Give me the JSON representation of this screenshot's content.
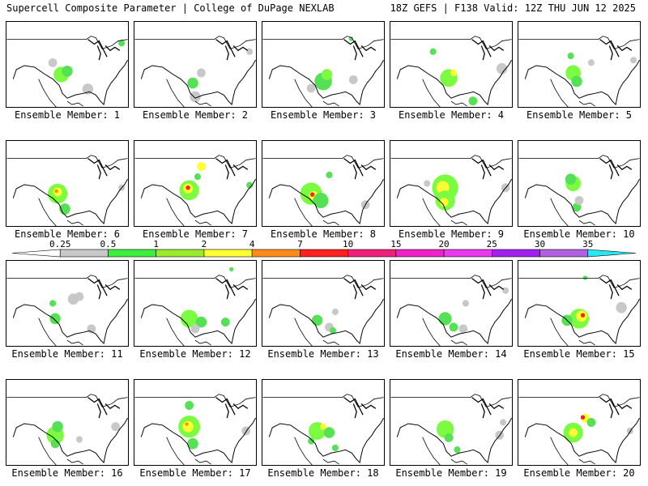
{
  "title_left": "Supercell Composite Parameter | College of DuPage NEXLAB",
  "title_right": "18Z GEFS | F138 Valid: 12Z THU JUN 12 2025",
  "members": [
    {
      "label": "Ensemble Member: 1",
      "blobs": [
        [
          0.45,
          0.62,
          "#7cfc40",
          0.07
        ],
        [
          0.5,
          0.58,
          "#55e055",
          0.05
        ],
        [
          0.67,
          0.79,
          "#c8c8c8",
          0.05
        ],
        [
          0.38,
          0.48,
          "#c8c8c8",
          0.04
        ],
        [
          0.95,
          0.25,
          "#55e055",
          0.03
        ]
      ]
    },
    {
      "label": "Ensemble Member: 2",
      "blobs": [
        [
          0.48,
          0.72,
          "#55e055",
          0.05
        ],
        [
          0.5,
          0.88,
          "#c8c8c8",
          0.05
        ],
        [
          0.55,
          0.6,
          "#c8c8c8",
          0.04
        ],
        [
          0.95,
          0.35,
          "#c8c8c8",
          0.03
        ]
      ]
    },
    {
      "label": "Ensemble Member: 3",
      "blobs": [
        [
          0.5,
          0.7,
          "#55e055",
          0.08
        ],
        [
          0.53,
          0.62,
          "#7cfc40",
          0.05
        ],
        [
          0.4,
          0.78,
          "#c8c8c8",
          0.04
        ],
        [
          0.75,
          0.68,
          "#c8c8c8",
          0.04
        ],
        [
          0.73,
          0.2,
          "#55e055",
          0.02
        ]
      ]
    },
    {
      "label": "Ensemble Member: 4",
      "blobs": [
        [
          0.48,
          0.66,
          "#7cfc40",
          0.08
        ],
        [
          0.52,
          0.6,
          "#ffff33",
          0.03
        ],
        [
          0.35,
          0.35,
          "#55e055",
          0.03
        ],
        [
          0.68,
          0.93,
          "#55e055",
          0.04
        ],
        [
          0.92,
          0.55,
          "#c8c8c8",
          0.05
        ]
      ]
    },
    {
      "label": "Ensemble Member: 5",
      "blobs": [
        [
          0.45,
          0.6,
          "#7cfc40",
          0.07
        ],
        [
          0.48,
          0.7,
          "#55e055",
          0.05
        ],
        [
          0.43,
          0.4,
          "#55e055",
          0.03
        ],
        [
          0.6,
          0.48,
          "#c8c8c8",
          0.03
        ],
        [
          0.95,
          0.45,
          "#c8c8c8",
          0.03
        ]
      ]
    },
    {
      "label": "Ensemble Member: 6",
      "blobs": [
        [
          0.42,
          0.62,
          "#7cfc40",
          0.09
        ],
        [
          0.42,
          0.6,
          "#ffff33",
          0.04
        ],
        [
          0.41,
          0.59,
          "#ff8c00",
          0.015
        ],
        [
          0.48,
          0.8,
          "#55e055",
          0.05
        ],
        [
          0.95,
          0.55,
          "#c8c8c8",
          0.03
        ]
      ]
    },
    {
      "label": "Ensemble Member: 7",
      "blobs": [
        [
          0.45,
          0.58,
          "#7cfc40",
          0.09
        ],
        [
          0.44,
          0.56,
          "#ffff33",
          0.045
        ],
        [
          0.44,
          0.55,
          "#ff2020",
          0.02
        ],
        [
          0.55,
          0.3,
          "#ffff33",
          0.04
        ],
        [
          0.52,
          0.42,
          "#55e055",
          0.03
        ],
        [
          0.95,
          0.52,
          "#55e055",
          0.03
        ]
      ]
    },
    {
      "label": "Ensemble Member: 8",
      "blobs": [
        [
          0.4,
          0.62,
          "#7cfc40",
          0.1
        ],
        [
          0.42,
          0.64,
          "#ffff33",
          0.04
        ],
        [
          0.41,
          0.63,
          "#ff2020",
          0.02
        ],
        [
          0.48,
          0.7,
          "#55e055",
          0.07
        ],
        [
          0.55,
          0.4,
          "#55e055",
          0.03
        ],
        [
          0.85,
          0.75,
          "#c8c8c8",
          0.04
        ]
      ]
    },
    {
      "label": "Ensemble Member: 9",
      "blobs": [
        [
          0.45,
          0.55,
          "#7cfc40",
          0.12
        ],
        [
          0.43,
          0.55,
          "#ffff33",
          0.06
        ],
        [
          0.45,
          0.7,
          "#7cfc40",
          0.09
        ],
        [
          0.44,
          0.72,
          "#ffff33",
          0.04
        ],
        [
          0.3,
          0.5,
          "#c8c8c8",
          0.03
        ],
        [
          0.95,
          0.55,
          "#c8c8c8",
          0.04
        ]
      ]
    },
    {
      "label": "Ensemble Member: 10",
      "blobs": [
        [
          0.45,
          0.5,
          "#7cfc40",
          0.07
        ],
        [
          0.43,
          0.45,
          "#55e055",
          0.05
        ],
        [
          0.48,
          0.78,
          "#55e055",
          0.04
        ],
        [
          0.5,
          0.7,
          "#c8c8c8",
          0.04
        ]
      ]
    },
    {
      "label": "Ensemble Member: 11",
      "blobs": [
        [
          0.4,
          0.68,
          "#55e055",
          0.05
        ],
        [
          0.38,
          0.5,
          "#55e055",
          0.03
        ],
        [
          0.55,
          0.45,
          "#c8c8c8",
          0.05
        ],
        [
          0.6,
          0.42,
          "#c8c8c8",
          0.04
        ],
        [
          0.7,
          0.8,
          "#c8c8c8",
          0.04
        ]
      ]
    },
    {
      "label": "Ensemble Member: 12",
      "blobs": [
        [
          0.45,
          0.68,
          "#7cfc40",
          0.08
        ],
        [
          0.55,
          0.72,
          "#55e055",
          0.05
        ],
        [
          0.75,
          0.72,
          "#55e055",
          0.04
        ],
        [
          0.5,
          0.8,
          "#c8c8c8",
          0.04
        ],
        [
          0.8,
          0.1,
          "#55e055",
          0.02
        ]
      ]
    },
    {
      "label": "Ensemble Member: 13",
      "blobs": [
        [
          0.45,
          0.7,
          "#55e055",
          0.05
        ],
        [
          0.55,
          0.78,
          "#c8c8c8",
          0.04
        ],
        [
          0.58,
          0.82,
          "#55e055",
          0.03
        ],
        [
          0.6,
          0.6,
          "#c8c8c8",
          0.03
        ]
      ]
    },
    {
      "label": "Ensemble Member: 14",
      "blobs": [
        [
          0.45,
          0.68,
          "#55e055",
          0.06
        ],
        [
          0.52,
          0.78,
          "#55e055",
          0.04
        ],
        [
          0.6,
          0.8,
          "#c8c8c8",
          0.04
        ],
        [
          0.95,
          0.35,
          "#c8c8c8",
          0.03
        ],
        [
          0.62,
          0.5,
          "#c8c8c8",
          0.03
        ]
      ]
    },
    {
      "label": "Ensemble Member: 15",
      "blobs": [
        [
          0.5,
          0.68,
          "#7cfc40",
          0.09
        ],
        [
          0.52,
          0.65,
          "#ffff33",
          0.05
        ],
        [
          0.53,
          0.64,
          "#ff2020",
          0.02
        ],
        [
          0.4,
          0.7,
          "#55e055",
          0.05
        ],
        [
          0.85,
          0.55,
          "#c8c8c8",
          0.05
        ],
        [
          0.55,
          0.2,
          "#55e055",
          0.02
        ]
      ]
    },
    {
      "label": "Ensemble Member: 16",
      "blobs": [
        [
          0.4,
          0.65,
          "#7cfc40",
          0.08
        ],
        [
          0.42,
          0.55,
          "#55e055",
          0.05
        ],
        [
          0.4,
          0.75,
          "#55e055",
          0.04
        ],
        [
          0.9,
          0.55,
          "#c8c8c8",
          0.04
        ],
        [
          0.6,
          0.7,
          "#c8c8c8",
          0.03
        ]
      ]
    },
    {
      "label": "Ensemble Member: 17",
      "blobs": [
        [
          0.45,
          0.55,
          "#7cfc40",
          0.1
        ],
        [
          0.44,
          0.55,
          "#ffff33",
          0.05
        ],
        [
          0.43,
          0.52,
          "#ff8c00",
          0.015
        ],
        [
          0.45,
          0.3,
          "#55e055",
          0.04
        ],
        [
          0.48,
          0.75,
          "#55e055",
          0.05
        ],
        [
          0.92,
          0.6,
          "#c8c8c8",
          0.04
        ]
      ]
    },
    {
      "label": "Ensemble Member: 18",
      "blobs": [
        [
          0.45,
          0.6,
          "#7cfc40",
          0.08
        ],
        [
          0.5,
          0.55,
          "#ffff33",
          0.03
        ],
        [
          0.55,
          0.62,
          "#55e055",
          0.05
        ],
        [
          0.4,
          0.72,
          "#55e055",
          0.03
        ],
        [
          0.6,
          0.8,
          "#55e055",
          0.03
        ]
      ]
    },
    {
      "label": "Ensemble Member: 19",
      "blobs": [
        [
          0.45,
          0.58,
          "#7cfc40",
          0.08
        ],
        [
          0.48,
          0.68,
          "#55e055",
          0.04
        ],
        [
          0.55,
          0.82,
          "#55e055",
          0.03
        ],
        [
          0.9,
          0.65,
          "#c8c8c8",
          0.04
        ],
        [
          0.93,
          0.5,
          "#c8c8c8",
          0.03
        ]
      ]
    },
    {
      "label": "Ensemble Member: 20",
      "blobs": [
        [
          0.45,
          0.62,
          "#7cfc40",
          0.09
        ],
        [
          0.45,
          0.62,
          "#ffff33",
          0.04
        ],
        [
          0.55,
          0.45,
          "#ffff33",
          0.04
        ],
        [
          0.53,
          0.44,
          "#ff2020",
          0.02
        ],
        [
          0.6,
          0.5,
          "#55e055",
          0.04
        ],
        [
          0.92,
          0.6,
          "#c8c8c8",
          0.03
        ]
      ]
    }
  ],
  "colorbar": {
    "labels": [
      "0.25",
      "0.5",
      "1",
      "2",
      "4",
      "7",
      "10",
      "15",
      "20",
      "25",
      "30",
      "35"
    ],
    "colors": [
      "#ffffff",
      "#c8c8c8",
      "#3ef03e",
      "#9aec2a",
      "#ffff33",
      "#ff8c1a",
      "#ff2020",
      "#f0207a",
      "#f020c8",
      "#e838f0",
      "#a020f0",
      "#b060e0",
      "#28e8f0"
    ]
  }
}
